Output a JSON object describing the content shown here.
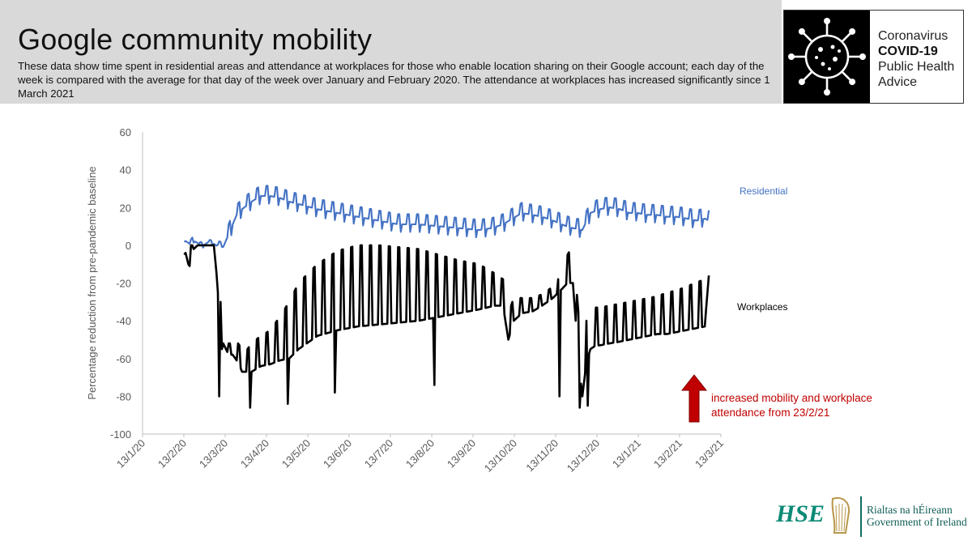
{
  "header": {
    "title": "Google community mobility",
    "subtitle": "These data show time spent in residential areas and attendance at workplaces for those who enable location sharing on their Google account; each day of the week is compared with the average for that day of the week over January and February 2020. The attendance at workplaces has increased significantly since 1 March 2021"
  },
  "badge": {
    "line1": "Coronavirus",
    "line2": "COVID-19",
    "line3": "Public Health",
    "line4": "Advice",
    "icon": "coronavirus-icon"
  },
  "footer": {
    "hse_logo": "HSE",
    "gov_line1": "Rialtas na hÉireann",
    "gov_line2": "Government of Ireland",
    "harp_icon": "harp-icon"
  },
  "annotation": {
    "line1": "increased mobility and workplace",
    "line2": "attendance from 23/2/21",
    "arrow": "up-arrow-icon",
    "color": "#c00000"
  },
  "chart_data": {
    "type": "line",
    "ylabel": "Percentage reduction from pre-pandemic baseline",
    "xlabel": "",
    "ylim": [
      -100,
      60
    ],
    "yticks": [
      -100,
      -80,
      -60,
      -40,
      -20,
      0,
      20,
      40,
      60
    ],
    "x_tick_labels": [
      "13/1/20",
      "13/2/20",
      "13/3/20",
      "13/4/20",
      "13/5/20",
      "13/6/20",
      "13/7/20",
      "13/8/20",
      "13/9/20",
      "13/10/20",
      "13/11/20",
      "13/12/20",
      "13/1/21",
      "13/2/21",
      "13/3/21"
    ],
    "x_range_days": [
      0,
      430
    ],
    "grid": false,
    "series": [
      {
        "name": "Residential",
        "color": "#4472c4",
        "x": [
          31,
          35,
          37,
          42,
          45,
          49,
          53,
          55,
          57,
          60,
          63,
          67,
          70,
          74,
          81,
          88,
          95,
          102,
          109,
          120,
          130,
          145,
          160,
          175,
          190,
          205,
          220,
          235,
          250,
          260,
          268,
          275,
          282,
          290,
          297,
          305,
          315,
          320,
          327,
          333,
          340,
          347,
          355,
          362,
          368,
          375,
          382,
          390,
          397,
          405,
          412,
          418,
          421
        ],
        "y": [
          3,
          1,
          3,
          1,
          0,
          2,
          1,
          0,
          1,
          0,
          5,
          12,
          17,
          20,
          24,
          27,
          27,
          26,
          24,
          22,
          20,
          18,
          16,
          14,
          12,
          12,
          11,
          10,
          9,
          10,
          12,
          15,
          18,
          17,
          16,
          14,
          11,
          10,
          9,
          18,
          20,
          21,
          20,
          18,
          18,
          17,
          17,
          16,
          16,
          15,
          14,
          15,
          14
        ],
        "weekly_amplitude": 9
      },
      {
        "name": "Workplaces",
        "color": "#000000",
        "x": [
          31,
          32,
          34,
          36,
          38,
          41,
          44,
          47,
          50,
          53,
          55,
          57,
          58,
          60,
          62,
          64,
          67,
          71,
          74,
          78,
          81,
          88,
          95,
          102,
          109,
          116,
          130,
          145,
          160,
          175,
          190,
          205,
          220,
          235,
          250,
          262,
          268,
          272,
          276,
          282,
          290,
          297,
          305,
          312,
          316,
          320,
          324,
          327,
          330,
          333,
          337,
          340,
          347,
          355,
          362,
          369,
          376,
          383,
          390,
          397,
          404,
          411,
          418,
          421
        ],
        "y": [
          -5,
          -4,
          -10,
          -12,
          -2,
          0,
          0,
          0,
          0,
          0,
          -15,
          -35,
          -58,
          -52,
          -55,
          -58,
          -58,
          -62,
          -67,
          -67,
          -67,
          -64,
          -63,
          -61,
          -60,
          -55,
          -48,
          -45,
          -43,
          -42,
          -41,
          -40,
          -38,
          -36,
          -34,
          -32,
          -32,
          -50,
          -40,
          -36,
          -35,
          -32,
          -28,
          -23,
          -20,
          -20,
          -60,
          -80,
          -62,
          -55,
          -53,
          -53,
          -52,
          -51,
          -50,
          -49,
          -48,
          -47,
          -47,
          -46,
          -45,
          -44,
          -43,
          -16
        ],
        "weekly_peak": [
          0,
          0,
          0,
          0,
          0,
          0,
          0,
          0,
          0,
          0,
          -5,
          -15,
          -30,
          -48,
          -50,
          -52,
          -52,
          -52,
          -55,
          -55,
          -52,
          -48,
          -45,
          -38,
          -30,
          -20,
          -10,
          -3,
          0,
          0,
          -1,
          -2,
          -5,
          -8,
          -10,
          -15,
          -18,
          -36,
          -28,
          -28,
          -28,
          -26,
          -22,
          -15,
          -5,
          0,
          -35,
          -50,
          -40,
          -35,
          -33,
          -33,
          -32,
          -31,
          -30,
          -29,
          -28,
          -27,
          -25,
          -24,
          -22,
          -20,
          -18,
          -14
        ],
        "dips": [
          [
            57,
            -80
          ],
          [
            80,
            -86
          ],
          [
            108,
            -84
          ],
          [
            143,
            -78
          ],
          [
            217,
            -74
          ],
          [
            310,
            -80
          ],
          [
            325,
            -86
          ],
          [
            331,
            -85
          ]
        ]
      }
    ]
  }
}
